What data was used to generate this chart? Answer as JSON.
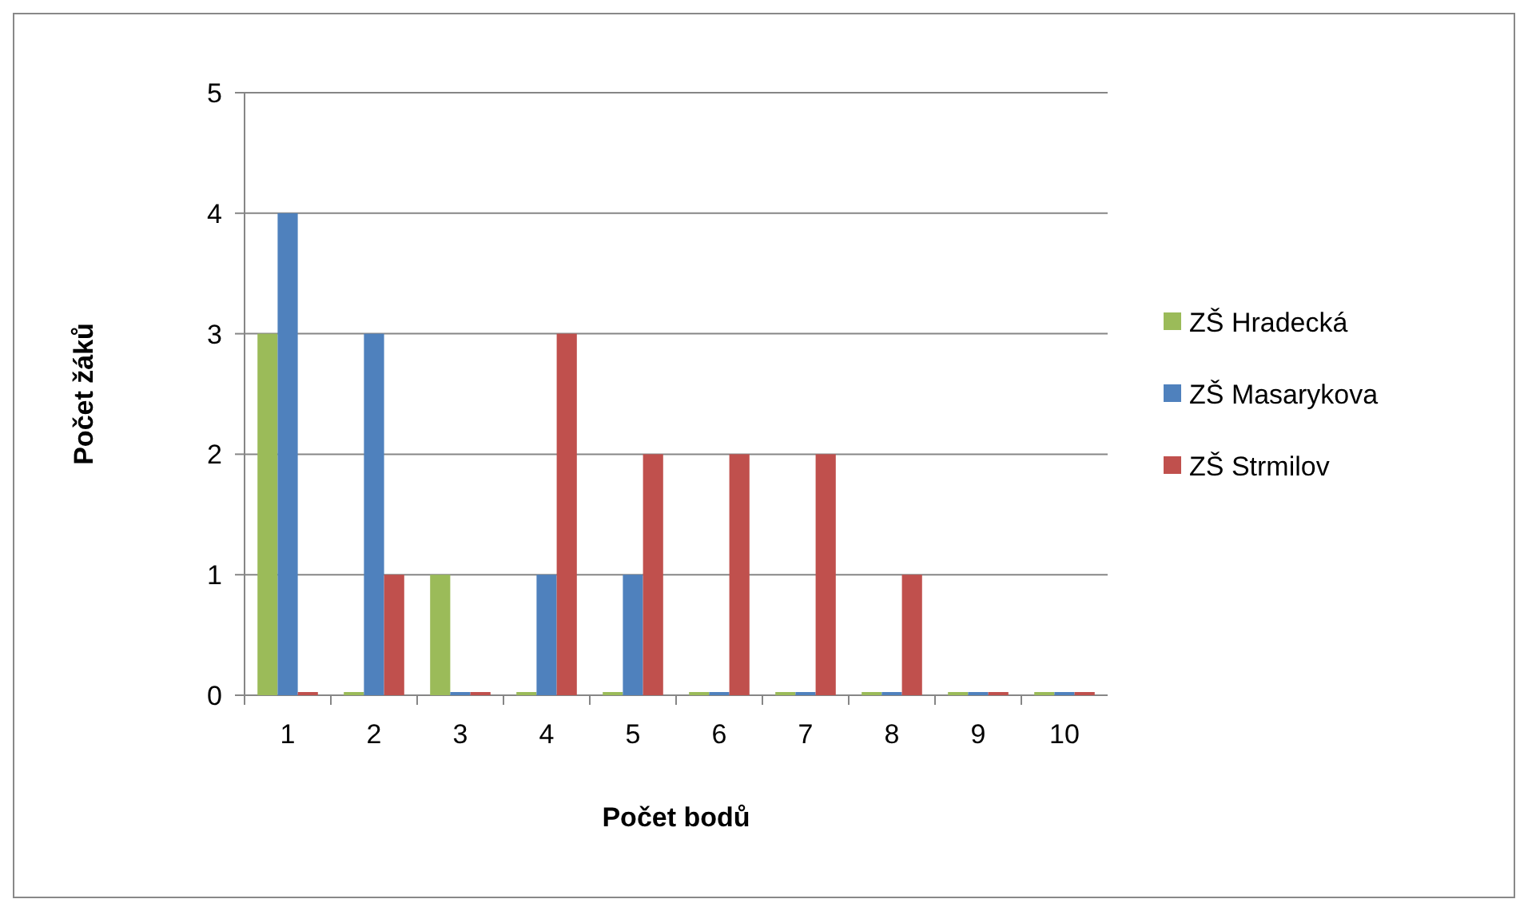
{
  "chart_data": {
    "type": "bar",
    "xlabel": "Počet bodů",
    "ylabel": "Počet žáků",
    "categories": [
      "1",
      "2",
      "3",
      "4",
      "5",
      "6",
      "7",
      "8",
      "9",
      "10"
    ],
    "series": [
      {
        "name": "ZŠ Hradecká",
        "color": "#9bbb59",
        "values": [
          3,
          0,
          1,
          0,
          0,
          0,
          0,
          0,
          0,
          0
        ]
      },
      {
        "name": "ZŠ Masarykova",
        "color": "#4f81bd",
        "values": [
          4,
          3,
          0,
          1,
          1,
          0,
          0,
          0,
          0,
          0
        ]
      },
      {
        "name": "ZŠ Strmilov",
        "color": "#c0504d",
        "values": [
          0,
          1,
          0,
          3,
          2,
          2,
          2,
          1,
          0,
          0
        ]
      }
    ],
    "ylim": [
      0,
      5
    ],
    "yticks": [
      0,
      1,
      2,
      3,
      4,
      5
    ],
    "grid": "y",
    "legend": "right"
  }
}
